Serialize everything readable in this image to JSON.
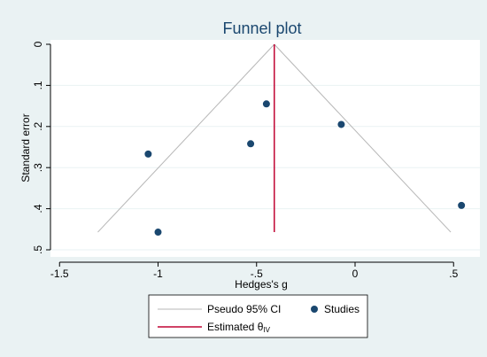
{
  "chart_data": {
    "type": "scatter",
    "title": "Funnel plot",
    "xlabel": "Hedges's g",
    "ylabel": "Standard error",
    "xlim": [
      -1.5,
      0.5
    ],
    "ylim": [
      0,
      0.5
    ],
    "y_reversed": true,
    "x_ticks": [
      -1.5,
      -1,
      -0.5,
      0,
      0.5
    ],
    "x_tick_labels": [
      "-1.5",
      "-1",
      "-.5",
      "0",
      ".5"
    ],
    "y_ticks": [
      0,
      0.1,
      0.2,
      0.3,
      0.4,
      0.5
    ],
    "y_tick_labels": [
      "0",
      ".1",
      ".2",
      ".3",
      ".4",
      ".5"
    ],
    "grid": true,
    "estimate": -0.41,
    "funnel_se_max": 0.457,
    "funnel_multiplier": 1.96,
    "points": [
      {
        "x": -1.05,
        "y": 0.267
      },
      {
        "x": -1.0,
        "y": 0.457
      },
      {
        "x": -0.53,
        "y": 0.242
      },
      {
        "x": -0.45,
        "y": 0.145
      },
      {
        "x": -0.07,
        "y": 0.195
      },
      {
        "x": 0.54,
        "y": 0.392
      }
    ],
    "legend": {
      "position": "bottom",
      "entries": [
        {
          "label": "Pseudo 95% CI",
          "kind": "line",
          "color": "#b7b7b7"
        },
        {
          "label": "Studies",
          "kind": "marker",
          "color": "#1a476f"
        },
        {
          "label": "Estimated θ",
          "subscript": "IV",
          "kind": "line",
          "color": "#c10534"
        }
      ]
    },
    "colors": {
      "background": "#eaf2f3",
      "plot_region": "#ffffff",
      "title": "#1a476f",
      "funnel": "#b7b7b7",
      "estimate": "#c10534",
      "points": "#1a476f",
      "grid": "#eaf2f3"
    }
  }
}
